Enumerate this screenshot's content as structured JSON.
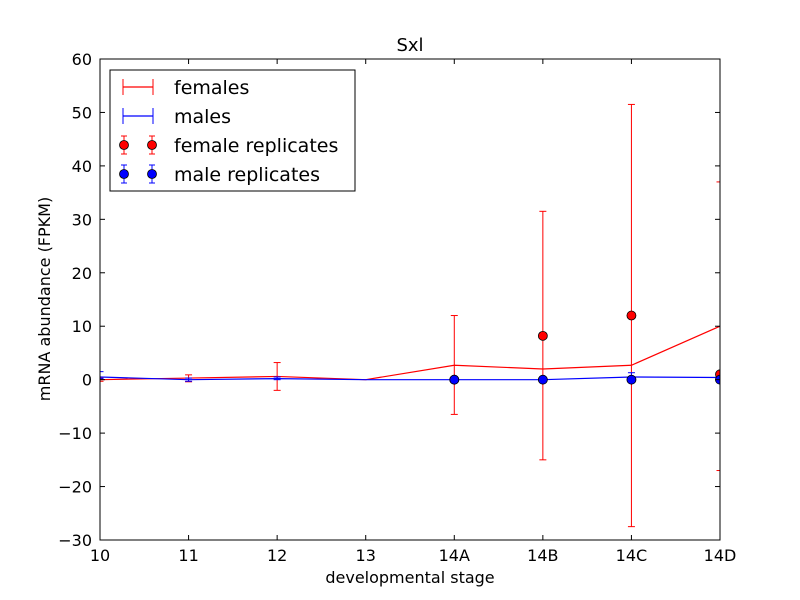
{
  "chart_data": {
    "type": "line",
    "title": "Sxl",
    "xlabel": "developmental stage",
    "ylabel": "mRNA abundance (FPKM)",
    "categories": [
      "10",
      "11",
      "12",
      "13",
      "14A",
      "14B",
      "14C",
      "14D"
    ],
    "ylim": [
      -30,
      60
    ],
    "yticks": [
      -30,
      -20,
      -10,
      0,
      10,
      20,
      30,
      40,
      50,
      60
    ],
    "ytick_labels": [
      "−30",
      "−20",
      "−10",
      "0",
      "10",
      "20",
      "30",
      "40",
      "50",
      "60"
    ],
    "grid": false,
    "legend_position": "top-left",
    "series": [
      {
        "name": "females",
        "color": "#ff0000",
        "kind": "line-errorbar",
        "values": [
          0.0,
          0.3,
          0.6,
          0.0,
          2.7,
          2.0,
          2.7,
          10.0
        ],
        "err_low": [
          -0.3,
          -0.4,
          -2.0,
          0.0,
          -6.5,
          -15.0,
          -27.5,
          -17.0
        ],
        "err_high": [
          0.3,
          0.9,
          3.2,
          0.0,
          12.0,
          31.5,
          51.5,
          37.0
        ]
      },
      {
        "name": "males",
        "color": "#0000ff",
        "kind": "line-errorbar",
        "values": [
          0.5,
          0.0,
          0.2,
          0.0,
          0.0,
          0.0,
          0.5,
          0.4
        ],
        "err_low": [
          0.2,
          -0.3,
          0.0,
          0.0,
          -0.3,
          -0.3,
          -0.3,
          -0.3
        ],
        "err_high": [
          1.5,
          0.3,
          0.5,
          0.0,
          0.3,
          0.3,
          1.3,
          1.2
        ]
      },
      {
        "name": "female replicates",
        "color": "#ff0000",
        "kind": "points",
        "points": [
          {
            "x": "14A",
            "y": 0.0
          },
          {
            "x": "14B",
            "y": 8.2
          },
          {
            "x": "14C",
            "y": 12.0
          },
          {
            "x": "14D",
            "y": 1.0
          }
        ]
      },
      {
        "name": "male replicates",
        "color": "#0000ff",
        "kind": "points",
        "points": [
          {
            "x": "14A",
            "y": 0.0
          },
          {
            "x": "14B",
            "y": 0.0
          },
          {
            "x": "14C",
            "y": 0.0
          },
          {
            "x": "14D",
            "y": 0.0
          }
        ]
      }
    ]
  }
}
